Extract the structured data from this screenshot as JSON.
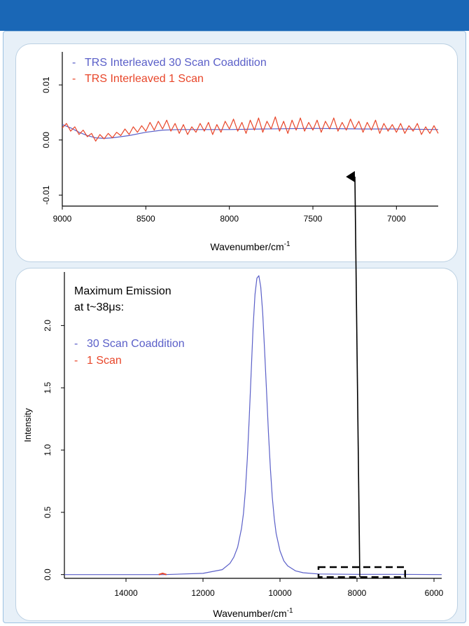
{
  "colors": {
    "header": "#1a67b6",
    "series_blue": "#5a5fc8",
    "series_red": "#e8462a",
    "arrow": "#000000"
  },
  "chart_data": [
    {
      "type": "line",
      "xlabel": "Wavenumber/cm",
      "xlabel_sup": "-1",
      "xlim": [
        9000,
        6750
      ],
      "ylim": [
        -0.012,
        0.016
      ],
      "xticks": [
        "9000",
        "8500",
        "8000",
        "7500",
        "7000"
      ],
      "yticks": [
        "-0.01",
        "0.00",
        "0.01"
      ],
      "legend": [
        {
          "mark": "-",
          "label": "TRS Interleaved 30 Scan Coaddition",
          "color": "#5a5fc8"
        },
        {
          "mark": "-",
          "label": "TRS Interleaved 1 Scan",
          "color": "#e8462a"
        }
      ],
      "series": [
        {
          "name": "TRS Interleaved 30 Scan Coaddition",
          "color": "#5a5fc8",
          "x": [
            9000,
            8950,
            8900,
            8850,
            8800,
            8750,
            8700,
            8600,
            8500,
            8400,
            8300,
            8200,
            8000,
            7800,
            7500,
            7200,
            7000,
            6750
          ],
          "y": [
            0.0028,
            0.0022,
            0.0014,
            0.0008,
            0.0004,
            0.0003,
            0.0004,
            0.0008,
            0.0014,
            0.0018,
            0.0019,
            0.0019,
            0.0019,
            0.002,
            0.0021,
            0.002,
            0.002,
            0.0019
          ]
        },
        {
          "name": "TRS Interleaved 1 Scan",
          "color": "#e8462a",
          "x": [
            9000,
            8975,
            8950,
            8925,
            8900,
            8875,
            8850,
            8825,
            8800,
            8775,
            8750,
            8725,
            8700,
            8675,
            8650,
            8625,
            8600,
            8575,
            8550,
            8525,
            8500,
            8475,
            8450,
            8425,
            8400,
            8375,
            8350,
            8325,
            8300,
            8275,
            8250,
            8225,
            8200,
            8175,
            8150,
            8125,
            8100,
            8075,
            8050,
            8025,
            8000,
            7975,
            7950,
            7925,
            7900,
            7875,
            7850,
            7825,
            7800,
            7775,
            7750,
            7725,
            7700,
            7675,
            7650,
            7625,
            7600,
            7575,
            7550,
            7525,
            7500,
            7475,
            7450,
            7425,
            7400,
            7375,
            7350,
            7325,
            7300,
            7275,
            7250,
            7225,
            7200,
            7175,
            7150,
            7125,
            7100,
            7075,
            7050,
            7025,
            7000,
            6975,
            6950,
            6925,
            6900,
            6875,
            6850,
            6825,
            6800,
            6775,
            6750
          ],
          "y": [
            0.0022,
            0.003,
            0.0016,
            0.0024,
            0.001,
            0.0018,
            0.0006,
            0.0012,
            -0.0002,
            0.001,
            0.0002,
            0.0012,
            0.0004,
            0.0014,
            0.0008,
            0.002,
            0.001,
            0.0024,
            0.0014,
            0.0026,
            0.0016,
            0.0032,
            0.0018,
            0.0034,
            0.002,
            0.0036,
            0.0016,
            0.003,
            0.0012,
            0.0028,
            0.001,
            0.0024,
            0.0014,
            0.003,
            0.0016,
            0.0032,
            0.001,
            0.0028,
            0.0014,
            0.0034,
            0.002,
            0.0038,
            0.0016,
            0.0032,
            0.0012,
            0.0036,
            0.0018,
            0.004,
            0.0014,
            0.0034,
            0.002,
            0.0042,
            0.0016,
            0.0034,
            0.0012,
            0.0036,
            0.0018,
            0.004,
            0.0016,
            0.0032,
            0.0018,
            0.0036,
            0.0014,
            0.0034,
            0.002,
            0.004,
            0.0016,
            0.0032,
            0.0018,
            0.0038,
            0.002,
            0.0034,
            0.0014,
            0.0032,
            0.0018,
            0.0036,
            0.0012,
            0.003,
            0.0016,
            0.0028,
            0.0014,
            0.003,
            0.0012,
            0.0026,
            0.0016,
            0.003,
            0.001,
            0.0024,
            0.0012,
            0.0026,
            0.0012
          ]
        }
      ]
    },
    {
      "type": "line",
      "xlabel": "Wavenumber/cm",
      "xlabel_sup": "-1",
      "ylabel": "Intensity",
      "xlim": [
        15600,
        5800
      ],
      "ylim": [
        -0.03,
        2.43
      ],
      "xticks": [
        "14000",
        "12000",
        "10000",
        "8000",
        "6000"
      ],
      "yticks": [
        "0.0",
        "0.5",
        "1.0",
        "1.5",
        "2.0"
      ],
      "annotation": [
        "Maximum Emission",
        "at t~38μs:"
      ],
      "legend": [
        {
          "mark": "-",
          "label": "30 Scan Coaddition",
          "color": "#5a5fc8"
        },
        {
          "mark": "-",
          "label": "1 Scan",
          "color": "#e8462a"
        }
      ],
      "zoom_region": {
        "x": [
          9000,
          6750
        ],
        "y": [
          -0.02,
          0.06
        ]
      },
      "series": [
        {
          "name": "30 Scan Coaddition",
          "color": "#5a5fc8",
          "x": [
            15600,
            13000,
            12000,
            11500,
            11300,
            11200,
            11100,
            11000,
            10950,
            10900,
            10850,
            10800,
            10750,
            10700,
            10650,
            10600,
            10550,
            10500,
            10450,
            10400,
            10350,
            10300,
            10250,
            10200,
            10150,
            10100,
            10000,
            9900,
            9800,
            9600,
            9400,
            9000,
            8000,
            7000,
            5800
          ],
          "y": [
            0.0,
            0.0,
            0.01,
            0.04,
            0.09,
            0.14,
            0.22,
            0.37,
            0.49,
            0.67,
            0.93,
            1.25,
            1.62,
            1.98,
            2.25,
            2.38,
            2.4,
            2.31,
            2.1,
            1.8,
            1.47,
            1.14,
            0.85,
            0.62,
            0.45,
            0.33,
            0.19,
            0.11,
            0.07,
            0.03,
            0.015,
            0.005,
            0.002,
            0.002,
            0.0
          ]
        },
        {
          "name": "1 Scan",
          "color": "#e8462a",
          "x": [
            13150,
            13050,
            12950
          ],
          "y": [
            0.0,
            0.01,
            0.0
          ]
        }
      ]
    }
  ]
}
